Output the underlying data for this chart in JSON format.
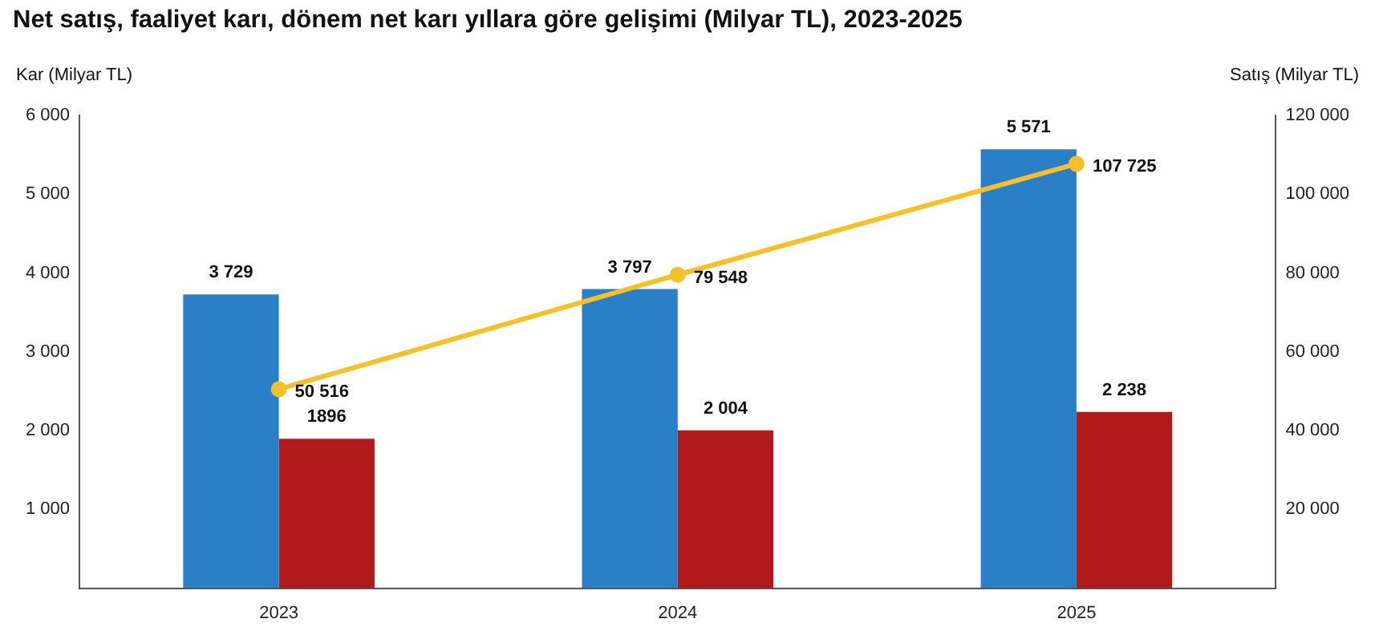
{
  "chart_data": {
    "type": "bar",
    "title": "Net satış, faaliyet karı, dönem net karı yıllara göre gelişimi (Milyar TL), 2023-2025",
    "ylabel": "Kar (Milyar TL)",
    "y2label": "Satış (Milyar TL)",
    "categories": [
      "2023",
      "2024",
      "2025"
    ],
    "series": [
      {
        "color": "#2a7fc6",
        "values": [
          3729,
          3797,
          5571
        ],
        "value_labels": [
          "3 729",
          "3 797",
          "5 571"
        ]
      },
      {
        "color": "#b01a1a",
        "values": [
          1896,
          2004,
          2238
        ],
        "value_labels": [
          "1896",
          "2 004",
          "2 238"
        ]
      },
      {
        "type": "line",
        "axis": "y2",
        "color": "#f5c02a",
        "values": [
          50516,
          79548,
          107725
        ],
        "value_labels": [
          "50 516",
          "79 548",
          "107 725"
        ]
      }
    ],
    "ylim": [
      0,
      6000
    ],
    "yticks": [
      {
        "value": 0,
        "label": null
      },
      {
        "value": 1000,
        "label": "1 000"
      },
      {
        "value": 2000,
        "label": "2 000"
      },
      {
        "value": 3000,
        "label": "3 000"
      },
      {
        "value": 4000,
        "label": "4 000"
      },
      {
        "value": 5000,
        "label": "5 000"
      },
      {
        "value": 6000,
        "label": "6 000"
      }
    ],
    "y2lim": [
      0,
      120000
    ],
    "y2ticks": [
      {
        "value": 0,
        "label": null
      },
      {
        "value": 20000,
        "label": "20 000"
      },
      {
        "value": 40000,
        "label": "40 000"
      },
      {
        "value": 60000,
        "label": "60 000"
      },
      {
        "value": 80000,
        "label": "80 000"
      },
      {
        "value": 100000,
        "label": "100 000"
      },
      {
        "value": 120000,
        "label": "120 000"
      }
    ],
    "grid": false,
    "legend": false,
    "marker": "circle",
    "line_style": "solid"
  }
}
